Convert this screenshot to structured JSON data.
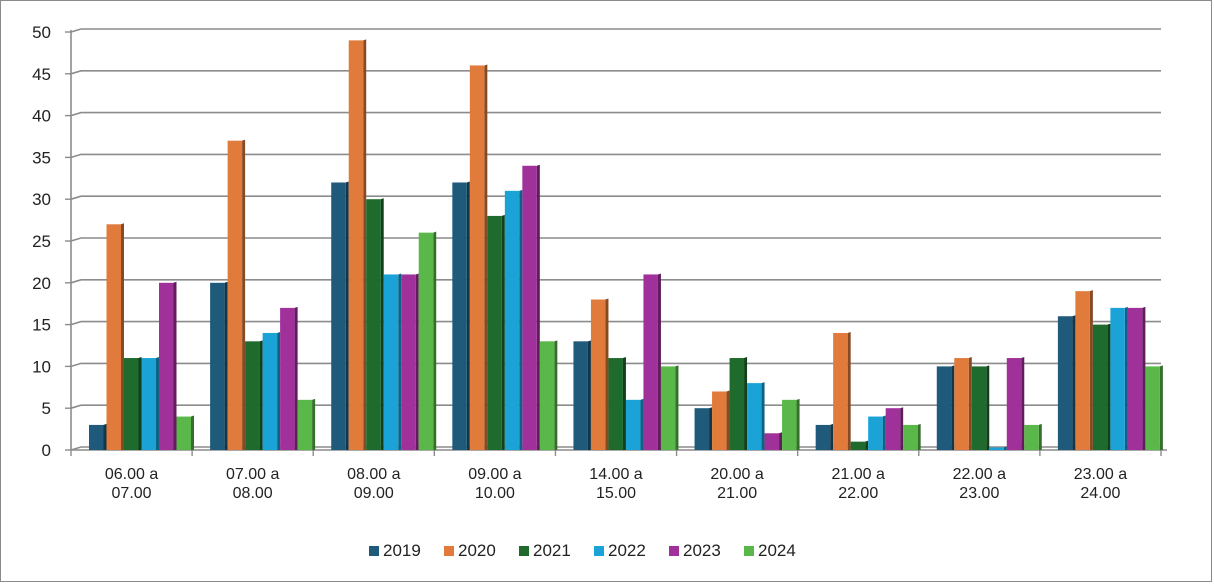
{
  "chart_data": {
    "type": "bar",
    "title": "",
    "xlabel": "",
    "ylabel": "",
    "ylim": [
      0,
      50
    ],
    "yticks": [
      0,
      5,
      10,
      15,
      20,
      25,
      30,
      35,
      40,
      45,
      50
    ],
    "grid": true,
    "legend_position": "bottom",
    "categories": [
      [
        "06.00 a",
        "07.00"
      ],
      [
        "07.00 a",
        "08.00"
      ],
      [
        "08.00 a",
        "09.00"
      ],
      [
        "09.00 a",
        "10.00"
      ],
      [
        "14.00 a",
        "15.00"
      ],
      [
        "20.00 a",
        "21.00"
      ],
      [
        "21.00 a",
        "22.00"
      ],
      [
        "22.00 a",
        "23.00"
      ],
      [
        "23.00 a",
        "24.00"
      ]
    ],
    "series": [
      {
        "name": "2019",
        "color": "#1f5a7a",
        "values": [
          3,
          20,
          32,
          32,
          13,
          5,
          3,
          10,
          16
        ]
      },
      {
        "name": "2020",
        "color": "#e07b3c",
        "values": [
          27,
          37,
          49,
          46,
          18,
          7,
          14,
          11,
          19
        ]
      },
      {
        "name": "2021",
        "color": "#1e6b2d",
        "values": [
          11,
          13,
          30,
          28,
          11,
          11,
          1,
          10,
          15
        ]
      },
      {
        "name": "2022",
        "color": "#1ba3d8",
        "values": [
          11,
          14,
          21,
          31,
          6,
          8,
          4,
          0.3,
          17
        ]
      },
      {
        "name": "2023",
        "color": "#a0309a",
        "values": [
          20,
          17,
          21,
          34,
          21,
          2,
          5,
          11,
          17
        ]
      },
      {
        "name": "2024",
        "color": "#5ab84a",
        "values": [
          4,
          6,
          26,
          13,
          10,
          6,
          3,
          3,
          10
        ]
      }
    ]
  }
}
